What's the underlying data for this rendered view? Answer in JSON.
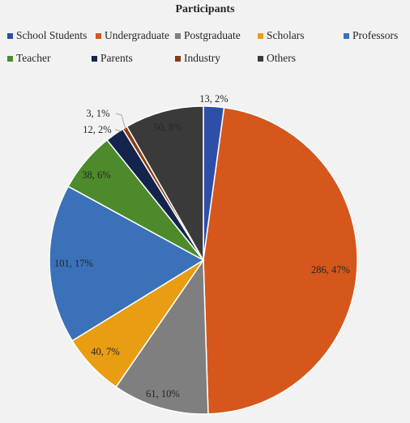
{
  "chart_data": {
    "type": "pie",
    "title": "Participants",
    "legend_position": "top",
    "slices": [
      {
        "name": "School Students",
        "value": 13,
        "percent": "2%",
        "label": "13, 2%",
        "color": "#2e4fa8"
      },
      {
        "name": "Undergraduate",
        "value": 286,
        "percent": "47%",
        "label": "286, 47%",
        "color": "#d5571b"
      },
      {
        "name": "Postgraduate",
        "value": 61,
        "percent": "10%",
        "label": "61, 10%",
        "color": "#7f7f7f"
      },
      {
        "name": "Scholars",
        "value": 40,
        "percent": "7%",
        "label": "40, 7%",
        "color": "#e99d12"
      },
      {
        "name": "Professors",
        "value": 101,
        "percent": "17%",
        "label": "101, 17%",
        "color": "#3a71b8"
      },
      {
        "name": "Teacher",
        "value": 38,
        "percent": "6%",
        "label": "38, 6%",
        "color": "#4c8a2b"
      },
      {
        "name": "Parents",
        "value": 12,
        "percent": "2%",
        "label": "12, 2%",
        "color": "#14244d"
      },
      {
        "name": "Industry",
        "value": 3,
        "percent": "1%",
        "label": "3, 1%",
        "color": "#8a3a12"
      },
      {
        "name": "Others",
        "value": 50,
        "percent": "8%",
        "label": "50, 8%",
        "color": "#3a3a3a"
      }
    ]
  }
}
